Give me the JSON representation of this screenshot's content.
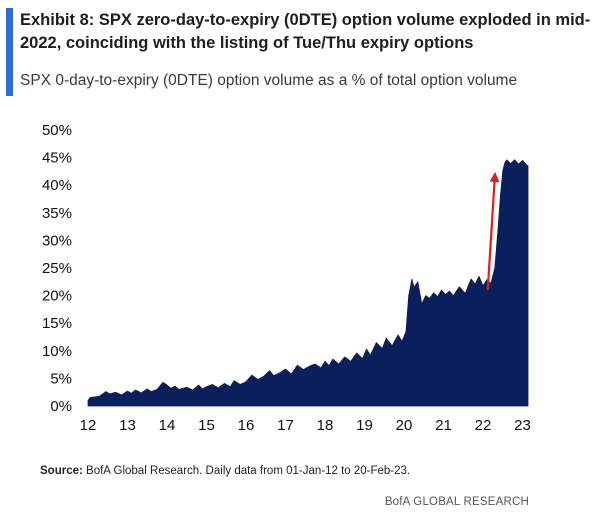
{
  "header": {
    "title": "Exhibit 8: SPX zero-day-to-expiry (0DTE) option volume exploded in mid-2022, coinciding with the listing of Tue/Thu expiry options",
    "subtitle": "SPX 0-day-to-expiry (0DTE) option volume as a % of total option volume",
    "accent_color": "#2b6fd6"
  },
  "footer": {
    "source_label": "Source:",
    "source_text": " BofA Global Research. Daily data from 01-Jan-12 to 20-Feb-23.",
    "credit": "BofA GLOBAL RESEARCH"
  },
  "chart_data": {
    "type": "area",
    "title": "SPX 0-day-to-expiry (0DTE) option volume as a % of total option volume",
    "xlabel": "",
    "ylabel": "",
    "x_ticks": [
      "12",
      "13",
      "14",
      "15",
      "16",
      "17",
      "18",
      "19",
      "20",
      "21",
      "22",
      "23"
    ],
    "y_ticks": [
      "0%",
      "5%",
      "10%",
      "15%",
      "20%",
      "25%",
      "30%",
      "35%",
      "40%",
      "45%",
      "50%"
    ],
    "xlim": [
      2012.0,
      2023.14
    ],
    "ylim": [
      0,
      50
    ],
    "fill_color": "#0b1f5c",
    "annotation": {
      "type": "arrow",
      "color": "#e11b22",
      "from": [
        2022.12,
        21.0
      ],
      "to": [
        2022.3,
        41.5
      ]
    },
    "series": [
      {
        "x": [
          2012.0,
          2012.05,
          2012.3,
          2012.45,
          2012.55,
          2012.7,
          2012.85,
          2013.0,
          2013.1,
          2013.2,
          2013.35,
          2013.5,
          2013.6,
          2013.75,
          2013.9,
          2014.0,
          2014.1,
          2014.2,
          2014.3,
          2014.5,
          2014.65,
          2014.8,
          2014.9,
          2015.0,
          2015.15,
          2015.3,
          2015.45,
          2015.6,
          2015.7,
          2015.85,
          2016.0,
          2016.15,
          2016.3,
          2016.45,
          2016.6,
          2016.7,
          2016.85,
          2017.0,
          2017.15,
          2017.3,
          2017.45,
          2017.6,
          2017.75,
          2017.9,
          2018.0,
          2018.1,
          2018.2,
          2018.35,
          2018.5,
          2018.65,
          2018.8,
          2018.95,
          2019.05,
          2019.15,
          2019.3,
          2019.45,
          2019.55,
          2019.7,
          2019.85,
          2019.95,
          2020.05,
          2020.12,
          2020.2,
          2020.25,
          2020.35,
          2020.45,
          2020.55,
          2020.65,
          2020.75,
          2020.85,
          2020.95,
          2021.05,
          2021.15,
          2021.25,
          2021.4,
          2021.55,
          2021.7,
          2021.8,
          2021.9,
          2022.0,
          2022.1,
          2022.2,
          2022.3,
          2022.38,
          2022.44,
          2022.5,
          2022.55,
          2022.6,
          2022.7,
          2022.8,
          2022.9,
          2023.0,
          2023.1,
          2023.14
        ],
        "values": [
          1.0,
          1.5,
          1.8,
          2.6,
          2.2,
          2.5,
          2.0,
          2.7,
          2.3,
          2.9,
          2.4,
          3.1,
          2.6,
          3.0,
          4.3,
          3.8,
          3.2,
          3.6,
          3.0,
          3.4,
          2.9,
          3.8,
          3.1,
          3.5,
          3.9,
          3.3,
          4.1,
          3.5,
          4.6,
          3.9,
          4.4,
          5.6,
          4.8,
          5.4,
          6.4,
          5.5,
          6.0,
          6.7,
          5.8,
          7.4,
          6.6,
          7.2,
          7.6,
          6.9,
          8.1,
          7.3,
          8.5,
          7.6,
          8.9,
          8.1,
          9.6,
          8.6,
          10.3,
          9.2,
          11.5,
          10.4,
          12.3,
          10.9,
          12.9,
          11.7,
          13.5,
          20.0,
          23.0,
          21.5,
          22.5,
          18.5,
          20.0,
          19.5,
          20.5,
          19.8,
          21.0,
          20.2,
          20.8,
          20.0,
          21.6,
          20.4,
          23.0,
          22.1,
          23.5,
          21.8,
          22.9,
          22.2,
          25.0,
          32.0,
          38.0,
          42.5,
          44.0,
          44.6,
          43.9,
          44.6,
          43.8,
          44.5,
          43.7,
          43.5
        ]
      }
    ]
  }
}
